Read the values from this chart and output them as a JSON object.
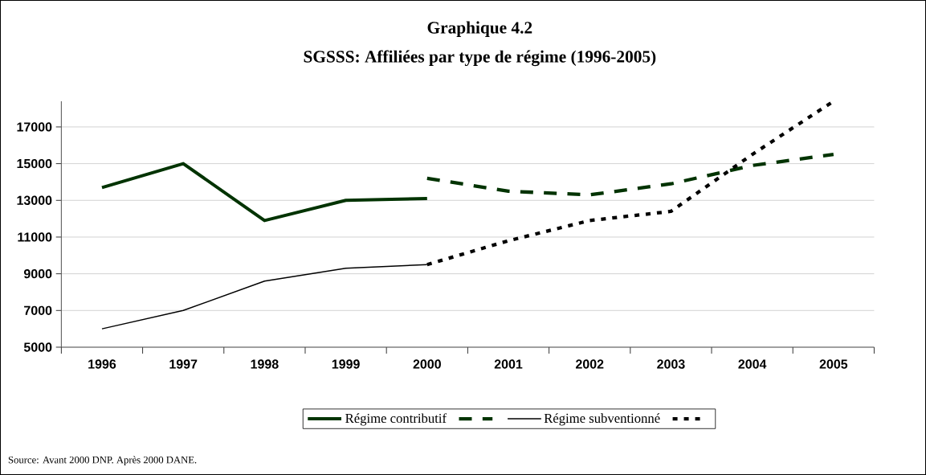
{
  "chart_data": {
    "type": "line",
    "title": "Graphique 4.2",
    "subtitle": "SGSSS: Affiliées par type de régime (1996-2005)",
    "categories": [
      "1996",
      "1997",
      "1998",
      "1999",
      "2000",
      "2001",
      "2002",
      "2003",
      "2004",
      "2005"
    ],
    "series": [
      {
        "name": "Régime contributif",
        "color": "#003300",
        "line_style": "solid",
        "values": [
          13700,
          15000,
          11900,
          13000,
          13100,
          null,
          null,
          null,
          null,
          null
        ]
      },
      {
        "color": "#003300",
        "line_style": "dashed",
        "values": [
          null,
          null,
          null,
          null,
          14200,
          13500,
          13300,
          13900,
          14900,
          15500
        ]
      },
      {
        "name": "Régime subventionné",
        "color": "#000000",
        "line_style": "solid",
        "values": [
          6000,
          7000,
          8600,
          9300,
          9500,
          null,
          null,
          null,
          null,
          null
        ]
      },
      {
        "color": "#000000",
        "line_style": "dotted",
        "values": [
          null,
          null,
          null,
          null,
          9500,
          10800,
          11900,
          12400,
          15500,
          18400
        ]
      }
    ],
    "ylim": [
      5000,
      18400
    ],
    "yticks": [
      5000,
      7000,
      9000,
      11000,
      13000,
      15000,
      17000
    ],
    "grid": "y",
    "legend": "bottom",
    "marker": "none",
    "annotations": [
      "Source: Avant 2000 DNP. Après 2000 DANE."
    ]
  }
}
